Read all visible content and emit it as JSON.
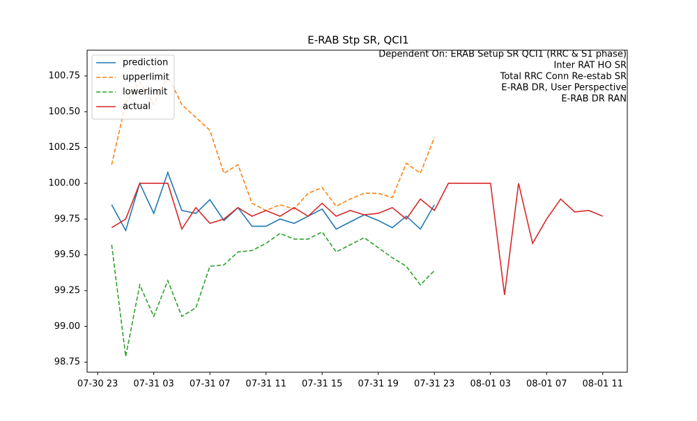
{
  "chart_data": {
    "type": "line",
    "title": "E-RAB Stp SR, QCI1",
    "annotations": [
      "Dependent On: ERAB Setup SR QCI1 (RRC & S1 phase)",
      "Inter RAT HO SR",
      "Total RRC Conn Re-estab SR",
      "E-RAB DR, User Perspective",
      "E-RAB DR RAN"
    ],
    "x": [
      "07-31 00",
      "07-31 01",
      "07-31 02",
      "07-31 03",
      "07-31 04",
      "07-31 05",
      "07-31 06",
      "07-31 07",
      "07-31 08",
      "07-31 09",
      "07-31 10",
      "07-31 11",
      "07-31 12",
      "07-31 13",
      "07-31 14",
      "07-31 15",
      "07-31 16",
      "07-31 17",
      "07-31 18",
      "07-31 19",
      "07-31 20",
      "07-31 21",
      "07-31 22",
      "07-31 23",
      "08-01 00",
      "08-01 01",
      "08-01 02",
      "08-01 03",
      "08-01 04",
      "08-01 05",
      "08-01 06",
      "08-01 07",
      "08-01 08",
      "08-01 09",
      "08-01 10",
      "08-01 11"
    ],
    "xlim": [
      "07-30 22:15",
      "08-01 12:45"
    ],
    "xticks": [
      "07-30 23",
      "07-31 03",
      "07-31 07",
      "07-31 11",
      "07-31 15",
      "07-31 19",
      "07-31 23",
      "08-01 03",
      "08-01 07",
      "08-01 11"
    ],
    "ylim": [
      98.68,
      100.93
    ],
    "yticks": [
      98.75,
      {
        "value": 99,
        "label": "99.00"
      },
      99.25,
      {
        "value": 99.5,
        "label": "99.50"
      },
      99.75,
      {
        "value": 100,
        "label": "100.00"
      },
      100.25,
      {
        "value": 100.5,
        "label": "100.50"
      },
      100.75
    ],
    "grid": false,
    "legend": "upper left",
    "series": [
      {
        "name": "prediction",
        "color": "#1f77b4",
        "dash": false,
        "values": [
          99.85,
          99.67,
          100.0,
          99.79,
          100.075,
          99.81,
          99.79,
          99.886,
          99.74,
          99.83,
          99.7,
          99.7,
          99.75,
          99.72,
          99.77,
          99.82,
          99.68,
          99.73,
          99.78,
          99.74,
          99.69,
          99.77,
          99.68,
          99.85,
          null,
          null,
          null,
          null,
          null,
          null,
          null,
          null,
          null,
          null,
          null,
          null
        ]
      },
      {
        "name": "upperlimit",
        "color": "#ff7f0e",
        "dash": true,
        "values": [
          100.13,
          100.56,
          100.71,
          100.55,
          100.75,
          100.55,
          100.46,
          100.37,
          100.07,
          100.13,
          99.86,
          99.81,
          99.85,
          99.82,
          99.93,
          99.97,
          99.84,
          99.89,
          99.93,
          99.93,
          99.9,
          100.14,
          100.07,
          100.32,
          null,
          null,
          null,
          null,
          null,
          null,
          null,
          null,
          null,
          null,
          null,
          null
        ]
      },
      {
        "name": "lowerlimit",
        "color": "#2ca02c",
        "dash": true,
        "values": [
          99.57,
          98.79,
          99.29,
          99.07,
          99.32,
          99.07,
          99.13,
          99.42,
          99.43,
          99.52,
          99.53,
          99.58,
          99.65,
          99.61,
          99.61,
          99.66,
          99.52,
          99.57,
          99.62,
          99.55,
          99.48,
          99.42,
          99.29,
          99.39,
          null,
          null,
          null,
          null,
          null,
          null,
          null,
          null,
          null,
          null,
          null,
          null
        ]
      },
      {
        "name": "actual",
        "color": "#d62728",
        "dash": false,
        "values": [
          99.69,
          99.75,
          100.0,
          100.0,
          100.0,
          99.68,
          99.83,
          99.72,
          99.75,
          99.83,
          99.77,
          99.81,
          99.77,
          99.83,
          99.77,
          99.86,
          99.77,
          99.81,
          99.78,
          99.79,
          99.83,
          99.75,
          99.89,
          99.81,
          100.0,
          100.0,
          100.0,
          100.0,
          99.22,
          100.0,
          99.58,
          99.75,
          99.89,
          99.8,
          99.81,
          99.77
        ]
      }
    ]
  }
}
